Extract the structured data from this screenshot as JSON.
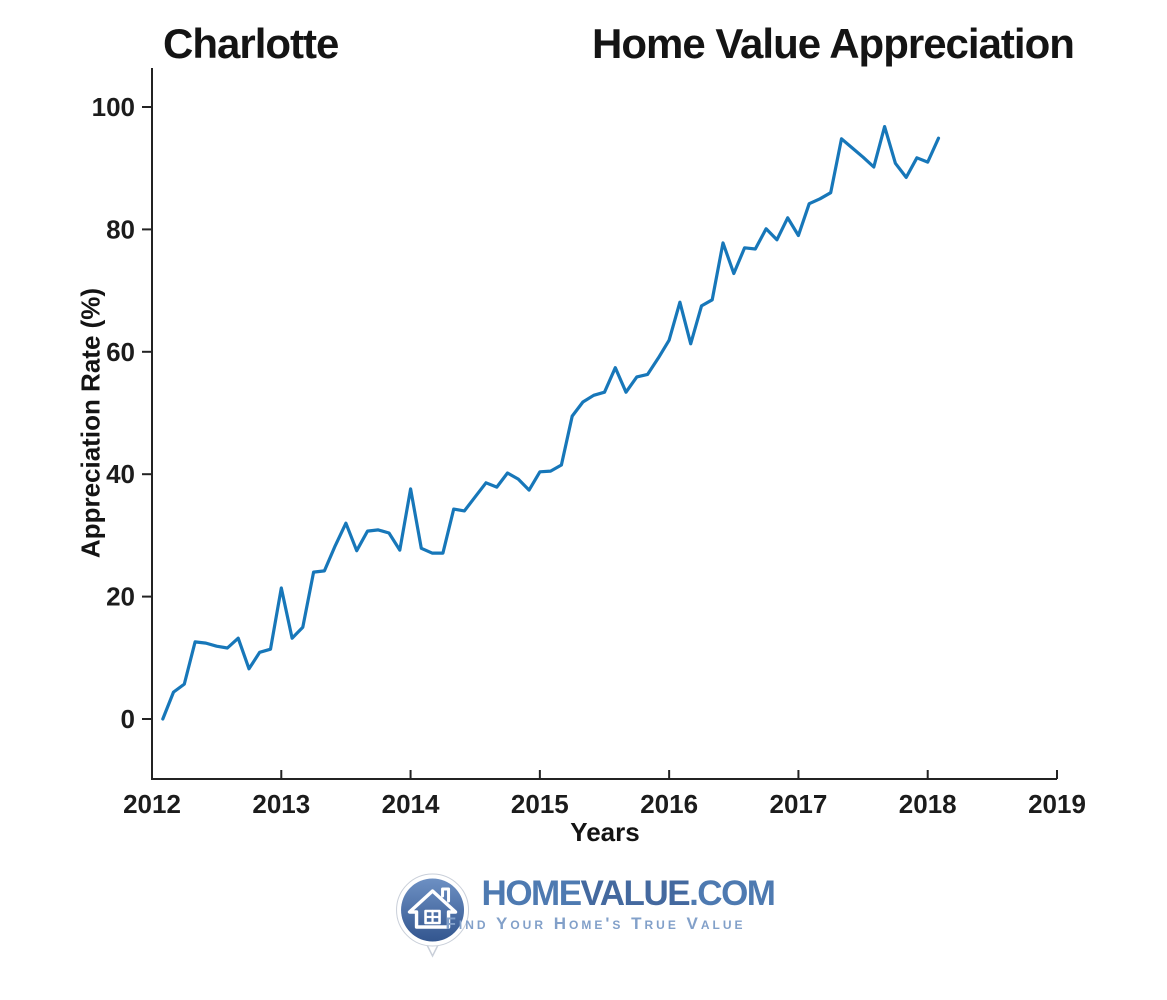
{
  "page": {
    "title_left": "Charlotte",
    "title_right": "Home Value Appreciation"
  },
  "chart_data": {
    "type": "line",
    "title": "Charlotte Home Value Appreciation",
    "xlabel": "Years",
    "ylabel": "Appreciation Rate (%)",
    "x_ticks": [
      "2012",
      "2013",
      "2014",
      "2015",
      "2016",
      "2017",
      "2018",
      "2019"
    ],
    "y_ticks": [
      0,
      20,
      40,
      60,
      80,
      100
    ],
    "xlim": [
      2012,
      2019
    ],
    "ylim": [
      -10,
      106
    ],
    "grid": false,
    "legend": "none",
    "line_color": "#1777b9",
    "frequency": "monthly",
    "x_start": "2012-02",
    "x_end": "2018-02",
    "series": [
      {
        "name": "Appreciation Rate (%)",
        "x_start_year": 2012.0833,
        "x_step": 0.0833,
        "values": [
          0.0,
          4.4,
          5.7,
          12.6,
          12.4,
          11.9,
          11.6,
          13.2,
          8.2,
          10.9,
          11.4,
          21.4,
          13.2,
          15.0,
          24.0,
          24.2,
          28.3,
          32.0,
          27.5,
          30.7,
          30.9,
          30.4,
          27.6,
          37.6,
          27.9,
          27.1,
          27.1,
          34.3,
          34.0,
          36.3,
          38.6,
          37.9,
          40.2,
          39.2,
          37.4,
          40.4,
          40.5,
          41.5,
          49.5,
          51.8,
          52.9,
          53.4,
          57.4,
          53.4,
          55.9,
          56.3,
          59.0,
          61.9,
          68.1,
          61.3,
          67.5,
          68.5,
          77.8,
          72.8,
          77.0,
          76.8,
          80.1,
          78.3,
          81.9,
          79.0,
          84.2,
          85.0,
          86.0,
          94.8,
          93.3,
          91.8,
          90.2,
          96.8,
          90.8,
          88.5,
          91.7,
          91.0,
          94.9
        ]
      }
    ]
  },
  "footer": {
    "brand_home": "HOME",
    "brand_value": "VALUE",
    "brand_com": ".COM",
    "tagline": "Find Your Home's True Value",
    "colors": {
      "brand": "#4e7ab1",
      "brand_bold": "#44699f",
      "tagline": "#82a0c9",
      "pin_top": "#6d90c3",
      "pin_bottom": "#33568f"
    }
  },
  "colors": {
    "line": "#1777b9",
    "axis": "#232323",
    "text": "#1a1a1a"
  }
}
